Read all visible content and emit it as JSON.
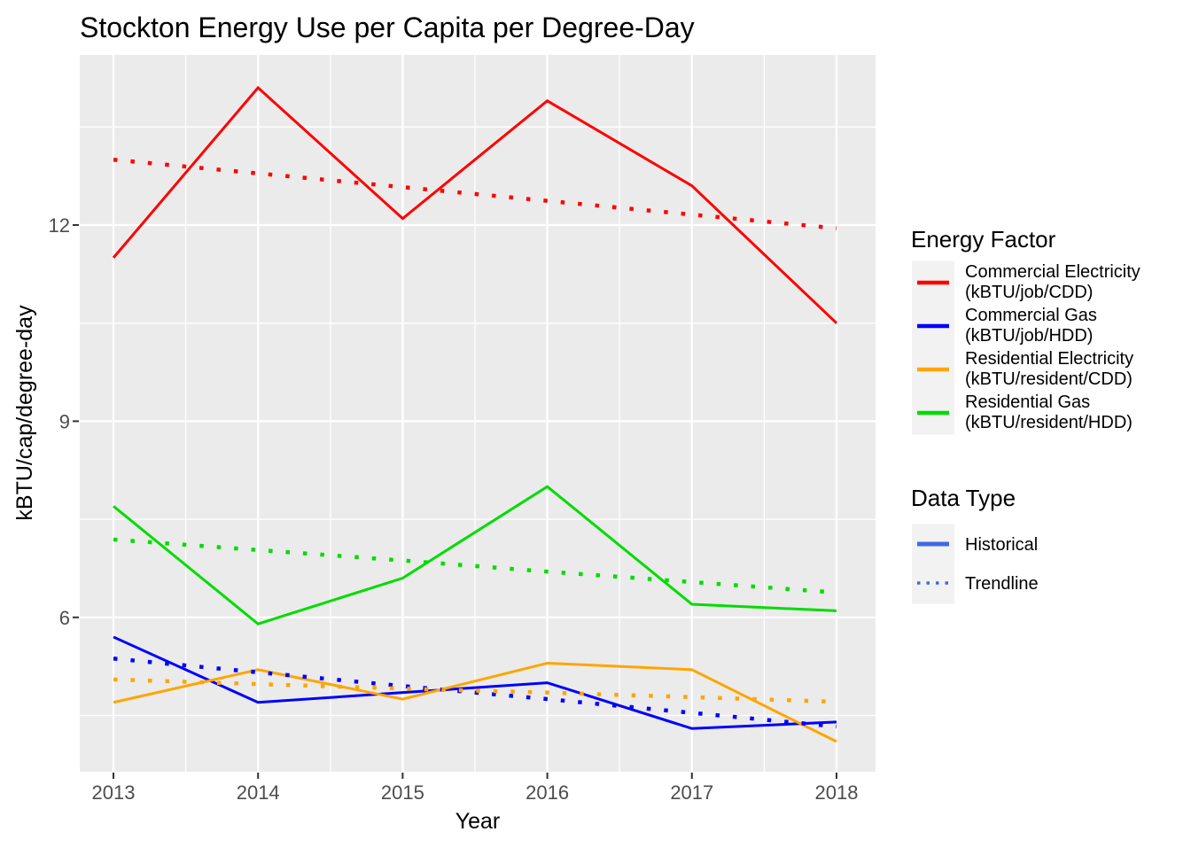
{
  "title": "Stockton Energy Use per Capita per Degree-Day",
  "axes": {
    "x_label": "Year",
    "y_label": "kBTU/cap/degree-day",
    "x_ticks": [
      "2013",
      "2014",
      "2015",
      "2016",
      "2017",
      "2018"
    ],
    "y_ticks": [
      "12",
      "9",
      "6"
    ]
  },
  "chart_data": {
    "type": "line",
    "title": "Stockton Energy Use per Capita per Degree-Day",
    "xlabel": "Year",
    "ylabel": "kBTU/cap/degree-day",
    "x": [
      2013,
      2014,
      2015,
      2016,
      2017,
      2018
    ],
    "ylim": [
      3.6,
      14.6
    ],
    "yticks_major": [
      6,
      9,
      12
    ],
    "yticks_minor": [
      4.5,
      7.5,
      10.5,
      13.5
    ],
    "grid": true,
    "legend_position": "right",
    "panel_background": "#EBEBEB",
    "gridline_color": "#FFFFFF",
    "series": [
      {
        "name": "Commercial Electricity (kBTU/job/CDD)",
        "data_type": "Historical",
        "color": "#FF0000",
        "linetype": "solid",
        "values": [
          11.5,
          14.1,
          12.1,
          13.9,
          12.6,
          10.5
        ]
      },
      {
        "name": "Commercial Electricity (kBTU/job/CDD)",
        "data_type": "Trendline",
        "color": "#FF0000",
        "linetype": "dotted",
        "values": [
          13.0,
          12.79,
          12.58,
          12.37,
          12.16,
          11.95
        ]
      },
      {
        "name": "Commercial Gas (kBTU/job/HDD)",
        "data_type": "Historical",
        "color": "#0000FF",
        "linetype": "solid",
        "values": [
          5.7,
          4.7,
          4.85,
          5.0,
          4.3,
          4.4
        ]
      },
      {
        "name": "Commercial Gas (kBTU/job/HDD)",
        "data_type": "Trendline",
        "color": "#0000FF",
        "linetype": "dotted",
        "values": [
          5.37,
          5.16,
          4.95,
          4.75,
          4.54,
          4.33
        ]
      },
      {
        "name": "Residential Electricity (kBTU/resident/CDD)",
        "data_type": "Historical",
        "color": "#FFA500",
        "linetype": "solid",
        "values": [
          4.7,
          5.2,
          4.75,
          5.3,
          5.2,
          4.1
        ]
      },
      {
        "name": "Residential Electricity (kBTU/resident/CDD)",
        "data_type": "Trendline",
        "color": "#FFA500",
        "linetype": "dotted",
        "values": [
          5.05,
          4.98,
          4.91,
          4.85,
          4.78,
          4.71
        ]
      },
      {
        "name": "Residential Gas (kBTU/resident/HDD)",
        "data_type": "Historical",
        "color": "#00DC00",
        "linetype": "solid",
        "values": [
          7.7,
          5.9,
          6.6,
          8.0,
          6.2,
          6.1
        ]
      },
      {
        "name": "Residential Gas (kBTU/resident/HDD)",
        "data_type": "Trendline",
        "color": "#00DC00",
        "linetype": "dotted",
        "values": [
          7.19,
          7.03,
          6.87,
          6.7,
          6.54,
          6.38
        ]
      }
    ]
  },
  "legend": {
    "energy_factor": {
      "title": "Energy Factor",
      "entries": [
        {
          "line1": "Commercial Electricity",
          "line2": "(kBTU/job/CDD)",
          "color": "#FF0000"
        },
        {
          "line1": "Commercial Gas",
          "line2": "(kBTU/job/HDD)",
          "color": "#0000FF"
        },
        {
          "line1": "Residential Electricity",
          "line2": "(kBTU/resident/CDD)",
          "color": "#FFA500"
        },
        {
          "line1": "Residential Gas",
          "line2": "(kBTU/resident/HDD)",
          "color": "#00DC00"
        }
      ]
    },
    "data_type": {
      "title": "Data Type",
      "key_color": "#4169E1",
      "entries": [
        {
          "label": "Historical",
          "linetype": "solid"
        },
        {
          "label": "Trendline",
          "linetype": "dotted"
        }
      ]
    }
  }
}
